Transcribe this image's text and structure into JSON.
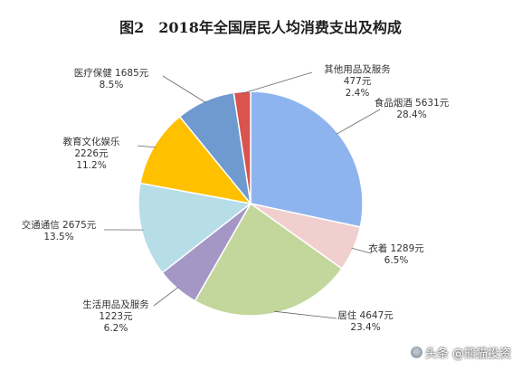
{
  "chart_data": {
    "type": "pie",
    "title": "图2　2018年全国居民人均消费支出及构成",
    "slices": [
      {
        "name": "食品烟酒",
        "value": 5631,
        "value_label": "5631元",
        "percent": "28.4%",
        "color": "#8eb4f0"
      },
      {
        "name": "衣着",
        "value": 1289,
        "value_label": "1289元",
        "percent": "6.5%",
        "color": "#f1cfcf"
      },
      {
        "name": "居住",
        "value": 4647,
        "value_label": "4647元",
        "percent": "23.4%",
        "color": "#c3d69b"
      },
      {
        "name": "生活用品及服务",
        "value": 1223,
        "value_label": "1223元",
        "percent": "6.2%",
        "color": "#a497c6"
      },
      {
        "name": "交通通信",
        "value": 2675,
        "value_label": "2675元",
        "percent": "13.5%",
        "color": "#b7dde8"
      },
      {
        "name": "教育文化娱乐",
        "value": 2226,
        "value_label": "2226元",
        "percent": "11.2%",
        "color": "#ffc000"
      },
      {
        "name": "医疗保健",
        "value": 1685,
        "value_label": "1685元",
        "percent": "8.5%",
        "color": "#6f9ad0"
      },
      {
        "name": "其他用品及服务",
        "value": 477,
        "value_label": "477元",
        "percent": "2.4%",
        "color": "#d9534f"
      }
    ]
  },
  "watermark": {
    "text": "头条 @熊猫投资"
  }
}
